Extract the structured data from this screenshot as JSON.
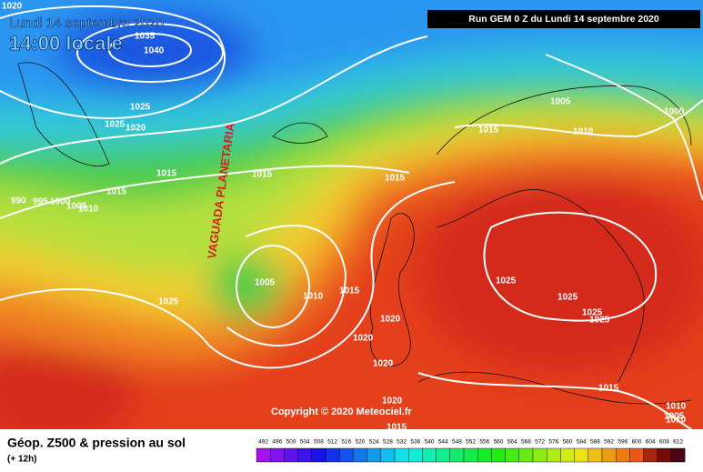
{
  "header": {
    "date": "Lundi 14 septembre 2020",
    "time": "14:00 locale",
    "run": "Run GEM 0 Z du Lundi 14 septembre 2020"
  },
  "annotation": "VAGUADA PLANETARIA",
  "copyright": "Copyright © 2020 Meteociel.fr",
  "isobar_labels": [
    "1020",
    "1035",
    "1040",
    "1025",
    "1025",
    "1020",
    "1015",
    "990",
    "995",
    "1000",
    "1005",
    "1010",
    "1015",
    "1025",
    "1005",
    "1010",
    "1015",
    "1015",
    "1015",
    "1015",
    "1020",
    "1020",
    "1020",
    "1020",
    "1015",
    "1025",
    "1025",
    "1025",
    "1025",
    "1015",
    "1005",
    "1005",
    "1010",
    "1000",
    "1010",
    "1010"
  ],
  "legend": {
    "title": "Géop. Z500 & pression au sol",
    "subtitle": "(+ 12h)",
    "scale": [
      492,
      496,
      500,
      504,
      508,
      512,
      516,
      520,
      524,
      528,
      532,
      536,
      540,
      544,
      548,
      552,
      556,
      560,
      564,
      568,
      572,
      576,
      580,
      584,
      588,
      592,
      596,
      600,
      604,
      608,
      612
    ]
  }
}
